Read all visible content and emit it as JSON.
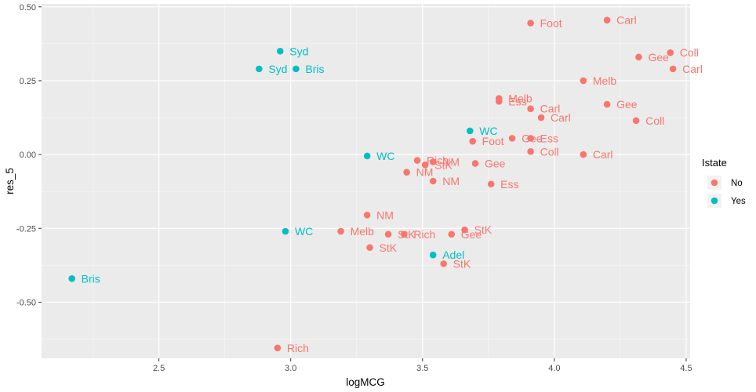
{
  "chart_data": {
    "type": "scatter",
    "xlabel": "logMCG",
    "ylabel": "res_5",
    "xlim": [
      2.055,
      4.515
    ],
    "ylim": [
      -0.69,
      0.51
    ],
    "xticks": [
      2.5,
      3.0,
      3.5,
      4.0,
      4.5
    ],
    "xtick_labels": [
      "2.5",
      "3.0",
      "3.5",
      "4.0",
      "4.5"
    ],
    "yticks": [
      -0.5,
      -0.25,
      0.0,
      0.25,
      0.5
    ],
    "ytick_labels": [
      "-0.50",
      "-0.25",
      "0.00",
      "0.25",
      "0.50"
    ],
    "grid": true,
    "legend": {
      "title": "Istate",
      "placement": "right",
      "entries": [
        {
          "label": "No",
          "color": "#F8766D"
        },
        {
          "label": "Yes",
          "color": "#00BFC4"
        }
      ]
    },
    "series": [
      {
        "name": "No",
        "color": "#F8766D",
        "points": [
          {
            "x": 3.91,
            "y": 0.445,
            "label": "Foot"
          },
          {
            "x": 4.2,
            "y": 0.455,
            "label": "Carl"
          },
          {
            "x": 4.44,
            "y": 0.345,
            "label": "Coll"
          },
          {
            "x": 4.32,
            "y": 0.33,
            "label": "Gee"
          },
          {
            "x": 4.45,
            "y": 0.29,
            "label": "Carl"
          },
          {
            "x": 4.11,
            "y": 0.25,
            "label": "Melb"
          },
          {
            "x": 3.79,
            "y": 0.19,
            "label": "Melb"
          },
          {
            "x": 3.79,
            "y": 0.18,
            "label": "Ess"
          },
          {
            "x": 4.2,
            "y": 0.17,
            "label": "Gee"
          },
          {
            "x": 3.91,
            "y": 0.155,
            "label": "Carl"
          },
          {
            "x": 3.95,
            "y": 0.125,
            "label": "Carl"
          },
          {
            "x": 4.31,
            "y": 0.115,
            "label": "Coll"
          },
          {
            "x": 3.91,
            "y": 0.055,
            "label": "Ess"
          },
          {
            "x": 3.84,
            "y": 0.055,
            "label": "Gee"
          },
          {
            "x": 3.69,
            "y": 0.045,
            "label": "Foot"
          },
          {
            "x": 3.91,
            "y": 0.01,
            "label": "Coll"
          },
          {
            "x": 4.11,
            "y": 0.0,
            "label": "Carl"
          },
          {
            "x": 3.48,
            "y": -0.02,
            "label": "Rich"
          },
          {
            "x": 3.54,
            "y": -0.025,
            "label": "NM"
          },
          {
            "x": 3.51,
            "y": -0.035,
            "label": "StK"
          },
          {
            "x": 3.7,
            "y": -0.03,
            "label": "Gee"
          },
          {
            "x": 3.44,
            "y": -0.06,
            "label": "NM"
          },
          {
            "x": 3.54,
            "y": -0.09,
            "label": "NM"
          },
          {
            "x": 3.76,
            "y": -0.1,
            "label": "Ess"
          },
          {
            "x": 3.29,
            "y": -0.205,
            "label": "NM"
          },
          {
            "x": 3.19,
            "y": -0.26,
            "label": "Melb"
          },
          {
            "x": 3.66,
            "y": -0.255,
            "label": "StK"
          },
          {
            "x": 3.37,
            "y": -0.27,
            "label": "StK"
          },
          {
            "x": 3.43,
            "y": -0.27,
            "label": "Rich"
          },
          {
            "x": 3.61,
            "y": -0.27,
            "label": "Gee"
          },
          {
            "x": 3.3,
            "y": -0.315,
            "label": "StK"
          },
          {
            "x": 3.58,
            "y": -0.37,
            "label": "StK"
          },
          {
            "x": 2.95,
            "y": -0.655,
            "label": "Rich"
          }
        ]
      },
      {
        "name": "Yes",
        "color": "#00BFC4",
        "points": [
          {
            "x": 2.96,
            "y": 0.35,
            "label": "Syd"
          },
          {
            "x": 2.88,
            "y": 0.29,
            "label": "Syd"
          },
          {
            "x": 3.02,
            "y": 0.29,
            "label": "Bris"
          },
          {
            "x": 3.68,
            "y": 0.08,
            "label": "WC"
          },
          {
            "x": 3.29,
            "y": -0.005,
            "label": "WC"
          },
          {
            "x": 2.98,
            "y": -0.26,
            "label": "WC"
          },
          {
            "x": 3.54,
            "y": -0.34,
            "label": "Adel"
          },
          {
            "x": 2.17,
            "y": -0.42,
            "label": "Bris"
          }
        ]
      }
    ]
  }
}
